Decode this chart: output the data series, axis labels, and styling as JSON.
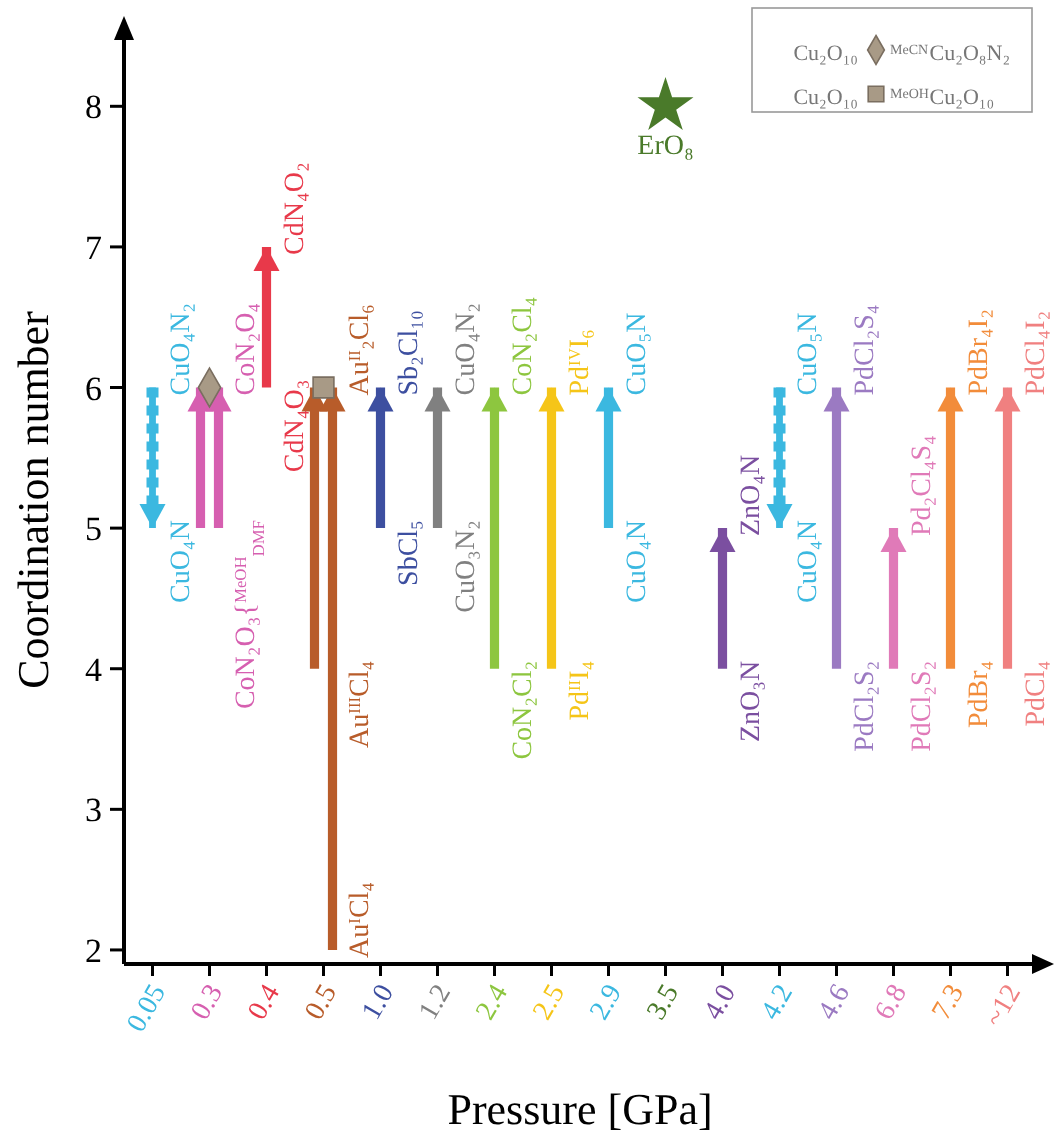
{
  "chart_data": {
    "type": "bar",
    "xlabel": "Pressure [GPa]",
    "ylabel": "Coordination number",
    "categories": [
      "0.05",
      "0.3",
      "0.4",
      "0.5",
      "1.0",
      "1.2",
      "2.4",
      "2.5",
      "2.9",
      "3.5",
      "4.0",
      "4.2",
      "4.6",
      "6.8",
      "7.3",
      "~12"
    ],
    "ylim": [
      1.9,
      8.5
    ],
    "yticks": [
      2,
      3,
      4,
      5,
      6,
      7,
      8
    ],
    "grid": false,
    "legend": "top right",
    "series": [
      {
        "base": [
          null,
          5,
          6,
          4,
          5,
          5,
          4,
          4,
          5,
          null,
          4,
          null,
          4,
          4,
          4,
          4
        ],
        "values": [
          null,
          1,
          1,
          2,
          1,
          1,
          2,
          2,
          1,
          null,
          1,
          null,
          2,
          1,
          2,
          2
        ],
        "colors": [
          null,
          "#d65fb0",
          "#e8394a",
          "#b85c2a",
          "#3d4fa0",
          "#808080",
          "#8dc63f",
          "#f5c518",
          "#3bb8e0",
          null,
          "#7b4fa0",
          null,
          "#9b7ac2",
          "#e07ab8",
          "#f28c3a",
          "#f08080"
        ],
        "line_style": "solid"
      },
      {
        "base": [
          null,
          5,
          null,
          2,
          null,
          null,
          null,
          null,
          null,
          null,
          null,
          null,
          null,
          null,
          null,
          null
        ],
        "values": [
          null,
          1,
          null,
          4,
          null,
          null,
          null,
          null,
          null,
          null,
          null,
          null,
          null,
          null,
          null,
          null
        ],
        "colors": [
          null,
          "#d65fb0",
          null,
          "#b85c2a",
          null,
          null,
          null,
          null,
          null,
          null,
          null,
          null,
          null,
          null,
          null,
          null
        ],
        "line_style": "solid"
      },
      {
        "base": [
          6,
          null,
          null,
          null,
          null,
          null,
          null,
          null,
          null,
          null,
          null,
          6,
          null,
          null,
          null,
          null
        ],
        "values": [
          -1,
          null,
          null,
          null,
          null,
          null,
          null,
          null,
          null,
          null,
          null,
          -1,
          null,
          null,
          null,
          null
        ],
        "colors": [
          "#3bb8e0",
          null,
          null,
          null,
          null,
          null,
          null,
          null,
          null,
          null,
          null,
          "#3bb8e0",
          null,
          null,
          null,
          null
        ],
        "line_style": "dotted"
      },
      {
        "type": "scatter",
        "x": [
          "3.5"
        ],
        "values": [
          8
        ],
        "color": "#4a7a2a",
        "marker": "star"
      },
      {
        "type": "scatter",
        "name": "MeCN",
        "x": [
          "0.3"
        ],
        "values": [
          6
        ],
        "color": "#a89a86",
        "marker": "diamond"
      },
      {
        "type": "scatter",
        "name": "MeOH",
        "x": [
          "0.5"
        ],
        "values": [
          6
        ],
        "color": "#a89a86",
        "marker": "square"
      }
    ],
    "annotations": [
      {
        "text": "CuO₄N₂",
        "x": "0.05",
        "y": 6
      },
      {
        "text": "CuO₄N",
        "x": "0.05",
        "y": 5
      },
      {
        "text": "CoN₂O₄",
        "x": "0.3",
        "y": 6
      },
      {
        "text": "CoN₂O₃{$^{MeOH}$$_{DMF}$",
        "x": "0.3",
        "y": 5
      },
      {
        "text": "CdN₄O₂",
        "x": "0.4",
        "y": 7
      },
      {
        "text": "CdN₄O₃",
        "x": "0.4",
        "y": 6
      },
      {
        "text": "Au$^{II}$₂Cl₆",
        "x": "0.5",
        "y": 6
      },
      {
        "text": "Au$^{III}$Cl₄",
        "x": "0.5",
        "y": 4
      },
      {
        "text": "Au$^{I}$Cl₄",
        "x": "0.5",
        "y": 2
      },
      {
        "text": "Sb₂Cl₁₀",
        "x": "1.0",
        "y": 6
      },
      {
        "text": "SbCl₅",
        "x": "1.0",
        "y": 5
      },
      {
        "text": "CuO₄N₂",
        "x": "1.2",
        "y": 6
      },
      {
        "text": "CuO₃N₂",
        "x": "1.2",
        "y": 5
      },
      {
        "text": "CoN₂Cl₄",
        "x": "2.4",
        "y": 6
      },
      {
        "text": "CoN₂Cl₂",
        "x": "2.4",
        "y": 4
      },
      {
        "text": "Pd$^{IV}$I₆",
        "x": "2.5",
        "y": 6
      },
      {
        "text": "Pd$^{II}$I₄",
        "x": "2.5",
        "y": 4
      },
      {
        "text": "CuO₅N",
        "x": "2.9",
        "y": 6
      },
      {
        "text": "CuO₄N",
        "x": "2.9",
        "y": 5
      },
      {
        "text": "ErO₈",
        "x": "3.5",
        "y": 8
      },
      {
        "text": "ZnO₄N",
        "x": "4.0",
        "y": 5
      },
      {
        "text": "ZnO₃N",
        "x": "4.0",
        "y": 4
      },
      {
        "text": "CuO₅N",
        "x": "4.2",
        "y": 6
      },
      {
        "text": "CuO₄N",
        "x": "4.2",
        "y": 5
      },
      {
        "text": "PdCl₂S₄",
        "x": "4.6",
        "y": 6
      },
      {
        "text": "PdCl₂S₂",
        "x": "4.6",
        "y": 4
      },
      {
        "text": "Pd₂Cl₄S₄",
        "x": "6.8",
        "y": 5
      },
      {
        "text": "PdCl₂S₂",
        "x": "6.8",
        "y": 4
      },
      {
        "text": "PdBr₄I₂",
        "x": "7.3",
        "y": 6
      },
      {
        "text": "PdBr₄",
        "x": "7.3",
        "y": 4
      },
      {
        "text": "PdCl₄I₂",
        "x": "~12",
        "y": 6
      },
      {
        "text": "PdCl₄",
        "x": "~12",
        "y": 4
      },
      "Cu₂O₁₀",
      "Cu₂O₈N₂",
      "Cu₂O₁₀",
      "Cu₂O₁₀"
    ]
  }
}
